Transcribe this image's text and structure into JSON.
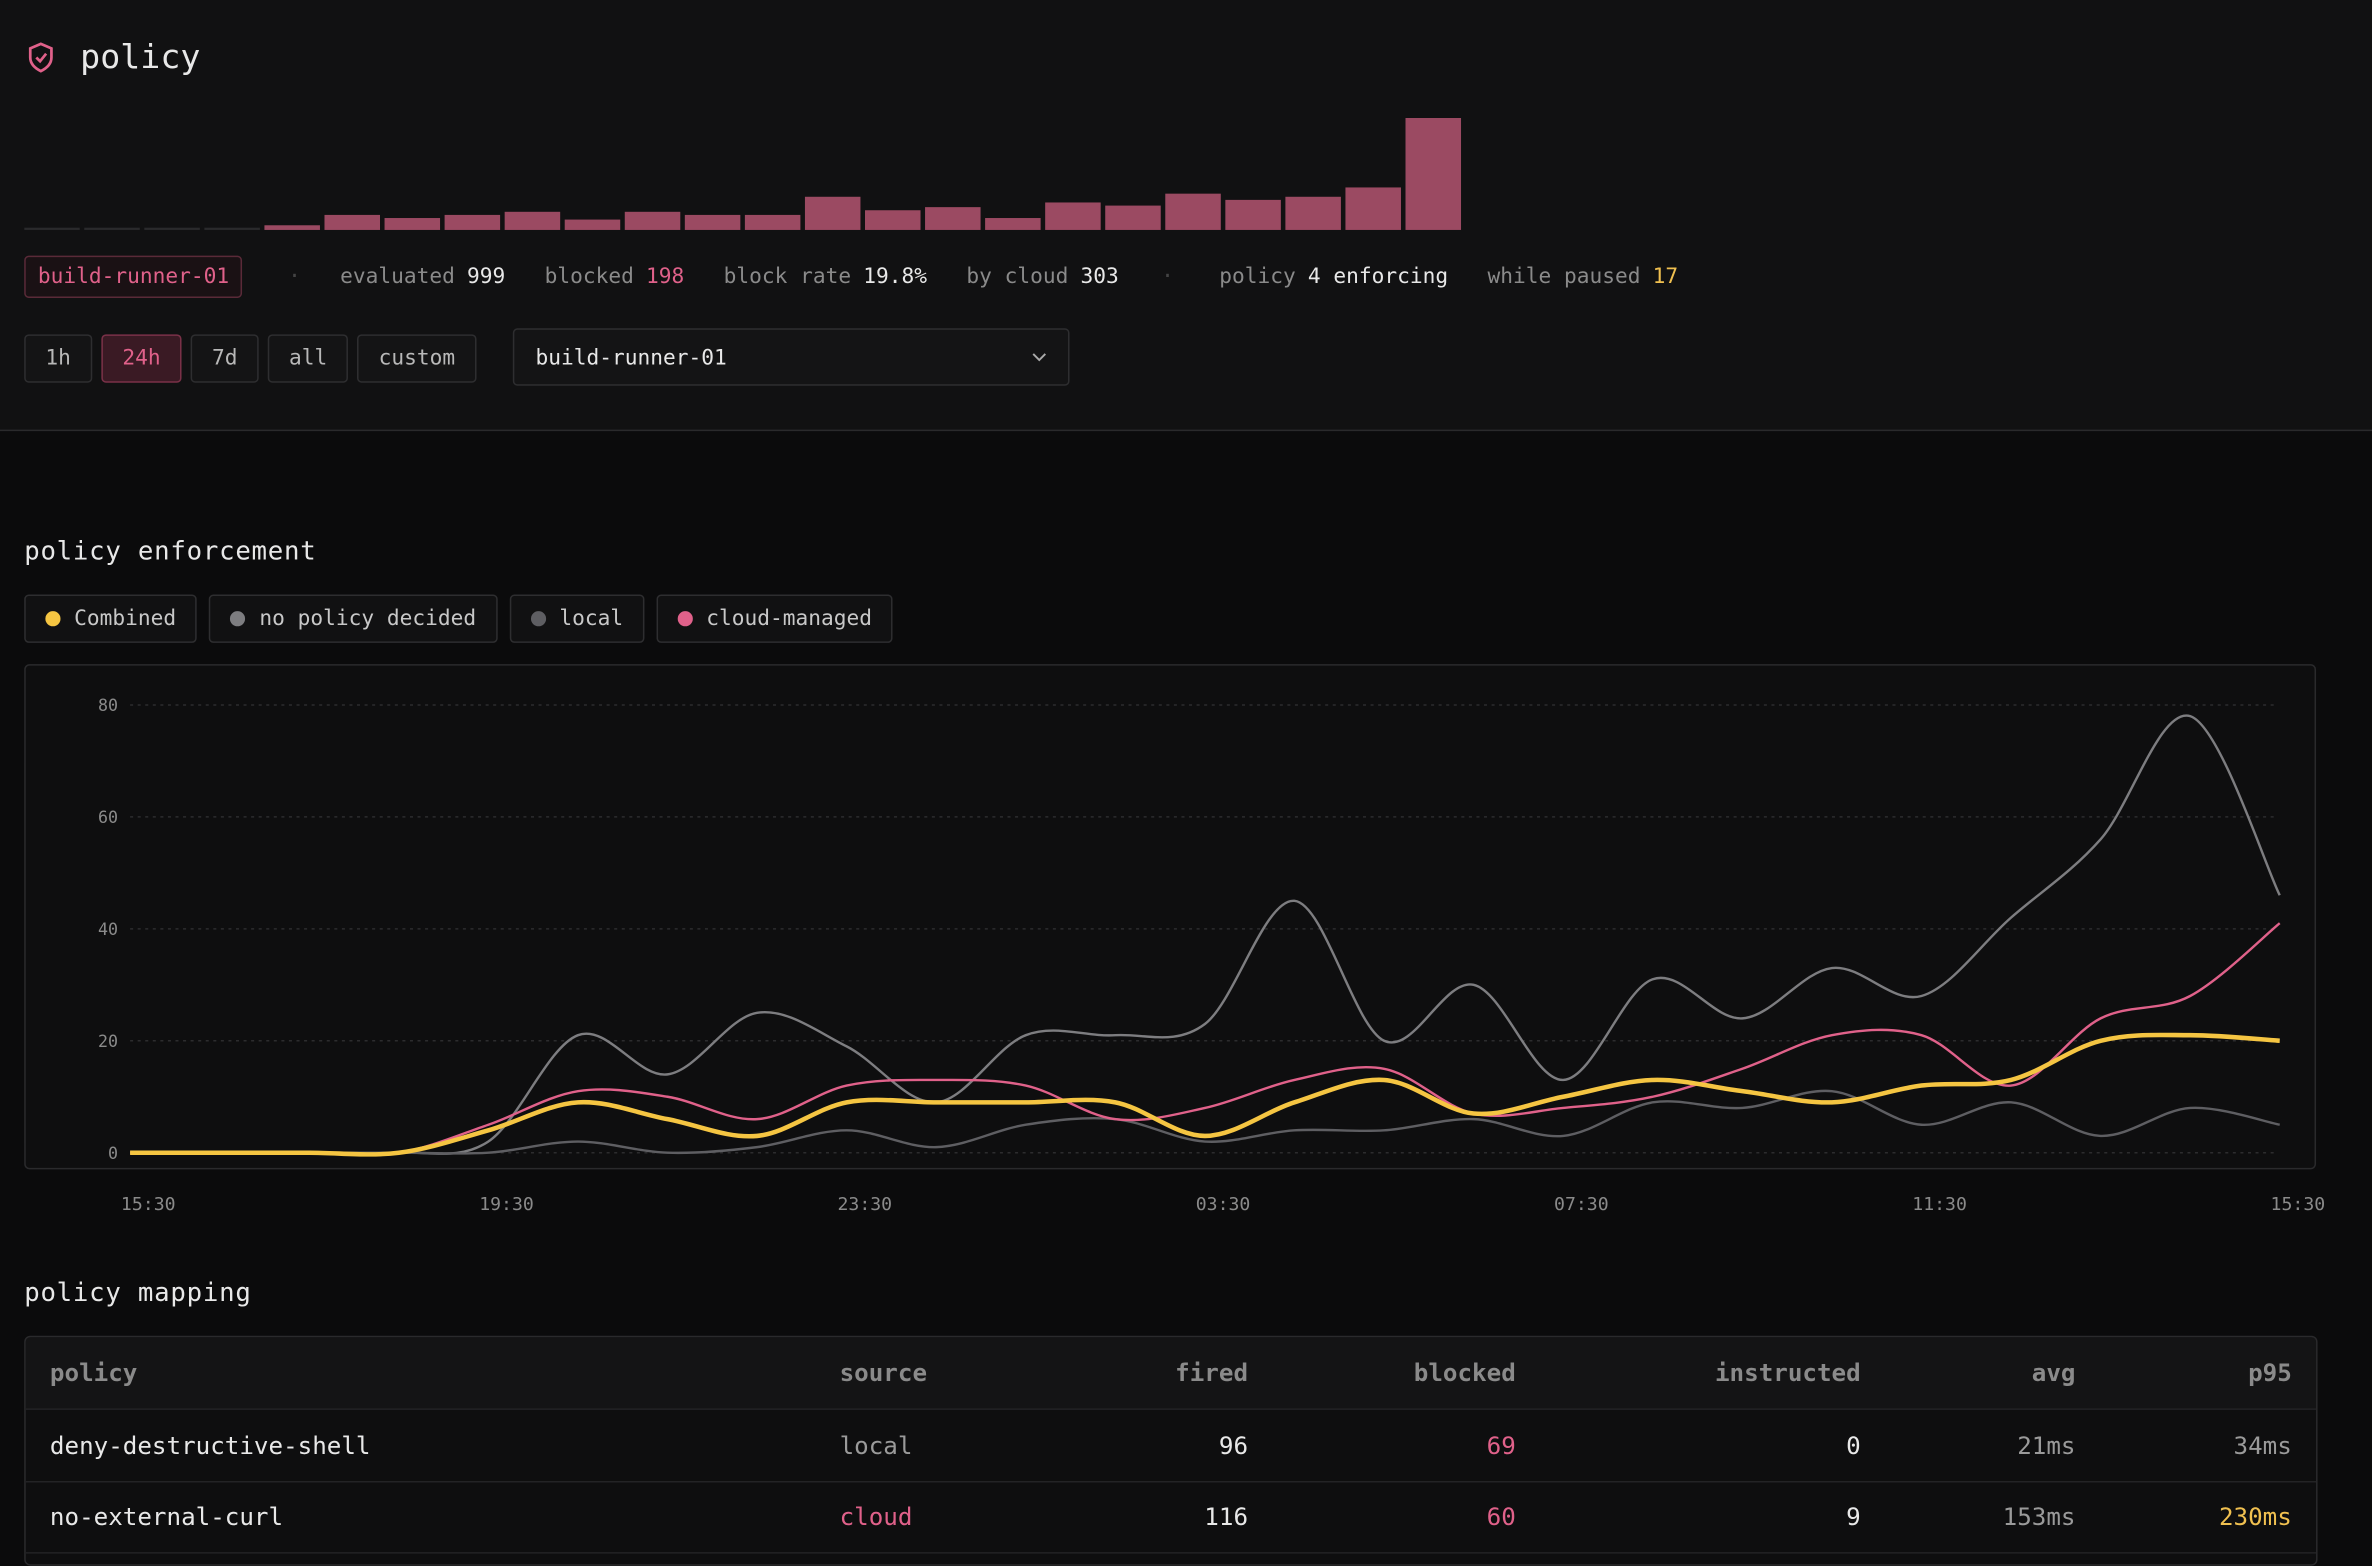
{
  "header": {
    "title": "policy"
  },
  "activity": {
    "type": "bar",
    "color": "#9b4a62",
    "values": [
      0,
      0,
      0,
      0,
      9,
      29,
      23,
      29,
      35,
      20,
      35,
      29,
      29,
      64,
      38,
      44,
      23,
      53,
      47,
      70,
      58,
      64,
      82,
      216
    ]
  },
  "stats": {
    "agent": "build-runner-01",
    "items": [
      {
        "label": "evaluated",
        "value": 999,
        "color": "#e8e8e8"
      },
      {
        "label": "blocked",
        "value": 198,
        "color": "#e0618a"
      },
      {
        "label": "block rate",
        "value": "19.8%",
        "color": "#e8e8e8"
      },
      {
        "label": "by cloud",
        "value": 303,
        "color": "#e8e8e8"
      },
      {
        "label": "policy",
        "value": "4 enforcing",
        "color": "#e8e8e8"
      },
      {
        "label": "while paused",
        "value": 17,
        "color": "#f0c050"
      }
    ]
  },
  "filters": {
    "ranges": [
      "1h",
      "24h",
      "7d",
      "all",
      "custom"
    ],
    "active": 1,
    "agent_select": "build-runner-01"
  },
  "chart_data": {
    "type": "line",
    "title": "policy enforcement",
    "categories": [
      "15:30",
      null,
      null,
      null,
      "19:30",
      null,
      null,
      null,
      "23:30",
      null,
      null,
      null,
      "03:30",
      null,
      null,
      null,
      "07:30",
      null,
      null,
      null,
      "11:30",
      null,
      null,
      null,
      "15:30"
    ],
    "series": [
      {
        "name": "Combined",
        "color": "#f5c542",
        "values": [
          0,
          0,
          0,
          0,
          4,
          9,
          6,
          3,
          9,
          9,
          9,
          9,
          3,
          9,
          13,
          7,
          10,
          13,
          11,
          9,
          12,
          13,
          20,
          21,
          20
        ]
      },
      {
        "name": "no policy decided",
        "color": "#7d7d80",
        "values": [
          0,
          0,
          0,
          0,
          2,
          21,
          14,
          25,
          19,
          9,
          21,
          21,
          23,
          45,
          20,
          30,
          13,
          31,
          24,
          33,
          28,
          42,
          56,
          78,
          46
        ]
      },
      {
        "name": "local",
        "color": "#5e5e62",
        "values": [
          0,
          0,
          0,
          0,
          0,
          2,
          0,
          1,
          4,
          1,
          5,
          6,
          2,
          4,
          4,
          6,
          3,
          9,
          8,
          11,
          5,
          9,
          3,
          8,
          5
        ]
      },
      {
        "name": "cloud-managed",
        "color": "#e0618a",
        "values": [
          0,
          0,
          0,
          0,
          5,
          11,
          10,
          6,
          12,
          13,
          12,
          6,
          8,
          13,
          15,
          7,
          8,
          10,
          15,
          21,
          21,
          12,
          24,
          28,
          41
        ]
      }
    ],
    "ylim": [
      0,
      80
    ],
    "yticks": [
      0,
      20,
      40,
      60,
      80
    ],
    "grid": true
  },
  "table": {
    "title": "policy mapping",
    "columns": [
      "policy",
      "source",
      "fired",
      "blocked",
      "instructed",
      "avg",
      "p95"
    ],
    "rows": [
      [
        "deny-destructive-shell",
        "local",
        96,
        69,
        0,
        "21ms",
        "34ms"
      ],
      [
        "no-external-curl",
        "cloud",
        116,
        60,
        9,
        "153ms",
        "230ms"
      ]
    ],
    "cell_colors": [
      [
        null,
        "#9a9a9a",
        null,
        "#e0618a",
        null,
        "#9a9a9a",
        "#9a9a9a"
      ],
      [
        null,
        "#e0618a",
        null,
        "#e0618a",
        null,
        "#9a9a9a",
        "#f0c050"
      ]
    ]
  }
}
